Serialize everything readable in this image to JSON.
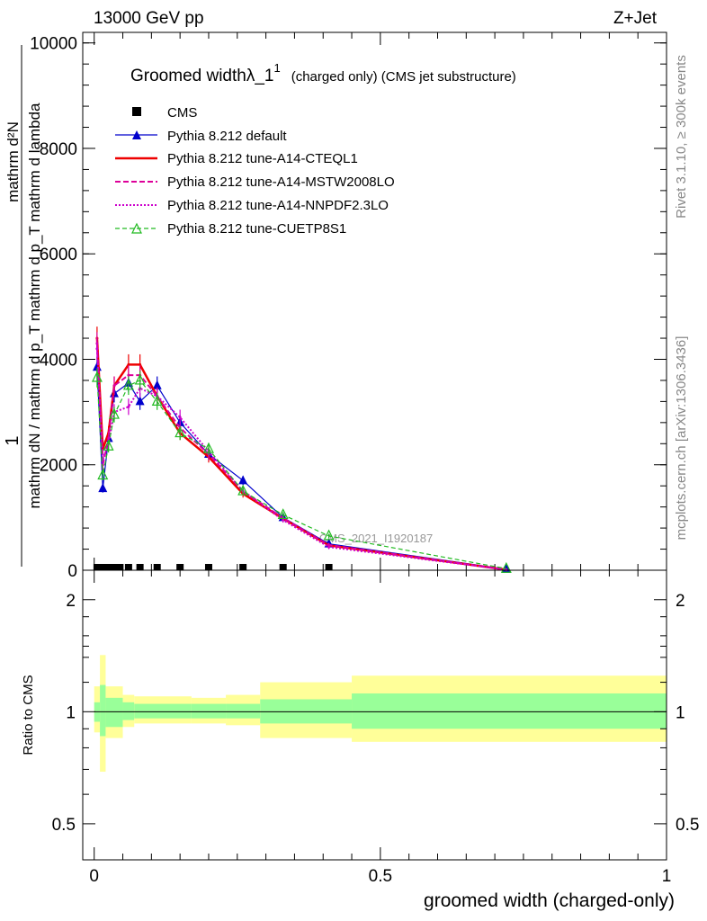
{
  "header": {
    "energy": "13000 GeV pp",
    "process": "Z+Jet",
    "rivet": "Rivet 3.1.10, ≥ 300k events",
    "mcplots": "mcplots.cern.ch [arXiv:1306.3436]",
    "watermark": "CMS_2021_I1920187"
  },
  "chart_data": [
    {
      "type": "line",
      "title": "Groomed widthλ_1",
      "title_sup": "1",
      "title_suffix": "(charged only) (CMS jet substructure)",
      "ylabel_num": "1",
      "ylabel_den": "mathrm dN / mathrm d p_T mathrm d p_T mathrm d lambda",
      "ylabel_main": "mathrm d²N",
      "ylim": [
        0,
        10200
      ],
      "xlim": [
        -0.02,
        1.0
      ],
      "yticks": [
        0,
        2000,
        4000,
        6000,
        8000,
        10000
      ],
      "legend_position": "top-left",
      "cms": {
        "name": "CMS",
        "x": [
          0.005,
          0.015,
          0.025,
          0.035,
          0.045,
          0.06,
          0.08,
          0.11,
          0.15,
          0.2,
          0.26,
          0.33,
          0.41
        ],
        "y": [
          0,
          0,
          0,
          0,
          0,
          0,
          0,
          0,
          0,
          0,
          0,
          0,
          0
        ]
      },
      "series": [
        {
          "name": "Pythia 8.212 default",
          "color": "#0000cc",
          "dash": "",
          "marker": "triangle-filled",
          "x": [
            0.005,
            0.015,
            0.025,
            0.035,
            0.06,
            0.08,
            0.11,
            0.15,
            0.2,
            0.26,
            0.33,
            0.41,
            0.72
          ],
          "y": [
            3850,
            1550,
            2500,
            3350,
            3550,
            3200,
            3500,
            2800,
            2200,
            1700,
            1000,
            500,
            20
          ]
        },
        {
          "name": "Pythia 8.212 tune-A14-CTEQL1",
          "color": "#ee0000",
          "dash": "",
          "marker": "none",
          "x": [
            0.005,
            0.015,
            0.025,
            0.035,
            0.06,
            0.08,
            0.11,
            0.15,
            0.2,
            0.26,
            0.33,
            0.41,
            0.72
          ],
          "y": [
            4400,
            2300,
            2600,
            3500,
            3900,
            3900,
            3300,
            2600,
            2150,
            1450,
            980,
            470,
            10
          ]
        },
        {
          "name": "Pythia 8.212 tune-A14-MSTW2008LO",
          "color": "#dd0099",
          "dash": "6,3",
          "marker": "none",
          "x": [
            0.005,
            0.015,
            0.025,
            0.035,
            0.06,
            0.08,
            0.11,
            0.15,
            0.2,
            0.26,
            0.33,
            0.41,
            0.72
          ],
          "y": [
            4300,
            2000,
            2500,
            3500,
            3700,
            3700,
            3300,
            2700,
            2200,
            1500,
            990,
            480,
            10
          ]
        },
        {
          "name": "Pythia 8.212 tune-A14-NNPDF2.3LO",
          "color": "#cc00cc",
          "dash": "2,2",
          "marker": "none",
          "x": [
            0.005,
            0.015,
            0.025,
            0.035,
            0.06,
            0.08,
            0.11,
            0.15,
            0.2,
            0.26,
            0.33,
            0.41,
            0.72
          ],
          "y": [
            4200,
            2100,
            2400,
            3000,
            3100,
            3450,
            3300,
            2900,
            2250,
            1500,
            950,
            440,
            10
          ]
        },
        {
          "name": "Pythia 8.212 tune-CUETP8S1",
          "color": "#22bb22",
          "dash": "5,3",
          "marker": "triangle-open",
          "x": [
            0.005,
            0.015,
            0.025,
            0.035,
            0.06,
            0.08,
            0.11,
            0.15,
            0.2,
            0.26,
            0.33,
            0.41,
            0.72
          ],
          "y": [
            3650,
            1800,
            2350,
            2950,
            3500,
            3600,
            3200,
            2600,
            2300,
            1500,
            1050,
            650,
            30
          ]
        }
      ]
    },
    {
      "type": "area",
      "ylabel": "Ratio to CMS",
      "xlabel": "groomed width (charged-only)",
      "xlim": [
        -0.02,
        1.0
      ],
      "ylim": [
        0.4,
        2.4
      ],
      "yticks": [
        0.5,
        1,
        2
      ],
      "xticks": [
        0,
        0.5,
        1
      ],
      "bins": [
        {
          "x0": 0.0,
          "x1": 0.01,
          "inner": [
            0.94,
            1.06
          ],
          "outer": [
            0.88,
            1.17
          ]
        },
        {
          "x0": 0.01,
          "x1": 0.02,
          "inner": [
            0.86,
            1.18
          ],
          "outer": [
            0.69,
            1.42
          ]
        },
        {
          "x0": 0.02,
          "x1": 0.05,
          "inner": [
            0.91,
            1.09
          ],
          "outer": [
            0.85,
            1.17
          ]
        },
        {
          "x0": 0.05,
          "x1": 0.07,
          "inner": [
            0.95,
            1.06
          ],
          "outer": [
            0.91,
            1.11
          ]
        },
        {
          "x0": 0.07,
          "x1": 0.17,
          "inner": [
            0.96,
            1.05
          ],
          "outer": [
            0.93,
            1.1
          ]
        },
        {
          "x0": 0.17,
          "x1": 0.23,
          "inner": [
            0.96,
            1.05
          ],
          "outer": [
            0.93,
            1.09
          ]
        },
        {
          "x0": 0.23,
          "x1": 0.29,
          "inner": [
            0.96,
            1.05
          ],
          "outer": [
            0.92,
            1.11
          ]
        },
        {
          "x0": 0.29,
          "x1": 0.45,
          "inner": [
            0.93,
            1.08
          ],
          "outer": [
            0.85,
            1.2
          ]
        },
        {
          "x0": 0.45,
          "x1": 1.0,
          "inner": [
            0.9,
            1.12
          ],
          "outer": [
            0.83,
            1.25
          ]
        }
      ],
      "reference": 1
    }
  ]
}
